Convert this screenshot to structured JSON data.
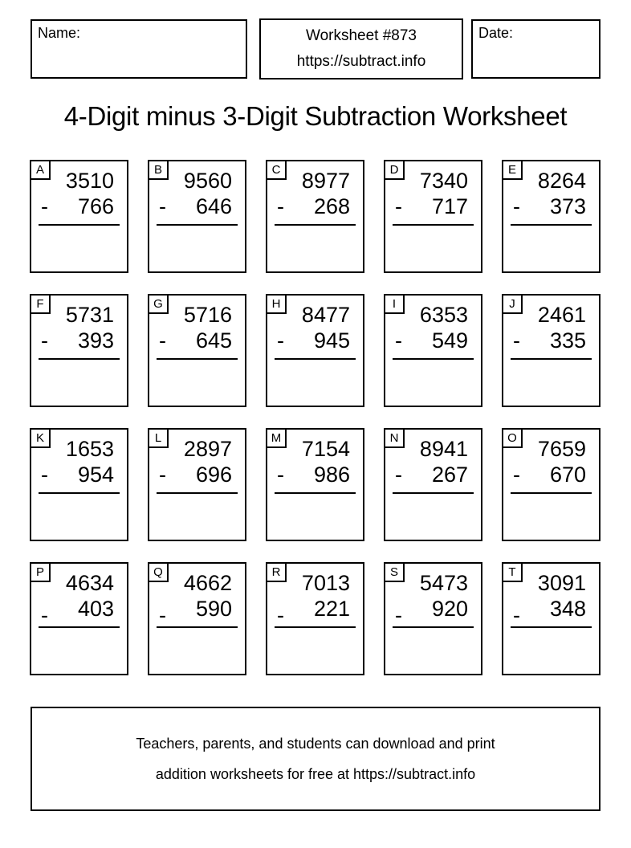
{
  "header": {
    "name_label": "Name:",
    "date_label": "Date:",
    "worksheet_number": "Worksheet #873",
    "worksheet_url": "https://subtract.info"
  },
  "title": "4-Digit minus 3-Digit Subtraction Worksheet",
  "minus_sign": "-",
  "problems": [
    {
      "letter": "A",
      "minuend": "3510",
      "subtrahend": "766"
    },
    {
      "letter": "B",
      "minuend": "9560",
      "subtrahend": "646"
    },
    {
      "letter": "C",
      "minuend": "8977",
      "subtrahend": "268"
    },
    {
      "letter": "D",
      "minuend": "7340",
      "subtrahend": "717"
    },
    {
      "letter": "E",
      "minuend": "8264",
      "subtrahend": "373"
    },
    {
      "letter": "F",
      "minuend": "5731",
      "subtrahend": "393"
    },
    {
      "letter": "G",
      "minuend": "5716",
      "subtrahend": "645"
    },
    {
      "letter": "H",
      "minuend": "8477",
      "subtrahend": "945"
    },
    {
      "letter": "I",
      "minuend": "6353",
      "subtrahend": "549"
    },
    {
      "letter": "J",
      "minuend": "2461",
      "subtrahend": "335"
    },
    {
      "letter": "K",
      "minuend": "1653",
      "subtrahend": "954"
    },
    {
      "letter": "L",
      "minuend": "2897",
      "subtrahend": "696"
    },
    {
      "letter": "M",
      "minuend": "7154",
      "subtrahend": "986"
    },
    {
      "letter": "N",
      "minuend": "8941",
      "subtrahend": "267"
    },
    {
      "letter": "O",
      "minuend": "7659",
      "subtrahend": "670"
    },
    {
      "letter": "P",
      "minuend": "4634",
      "subtrahend": "403"
    },
    {
      "letter": "Q",
      "minuend": "4662",
      "subtrahend": "590"
    },
    {
      "letter": "R",
      "minuend": "7013",
      "subtrahend": "221"
    },
    {
      "letter": "S",
      "minuend": "5473",
      "subtrahend": "920"
    },
    {
      "letter": "T",
      "minuend": "3091",
      "subtrahend": "348"
    }
  ],
  "footer": {
    "line1": "Teachers, parents, and students can download and print",
    "line2": "addition worksheets for free at https://subtract.info"
  },
  "colors": {
    "ink": "#000000",
    "paper": "#ffffff"
  }
}
